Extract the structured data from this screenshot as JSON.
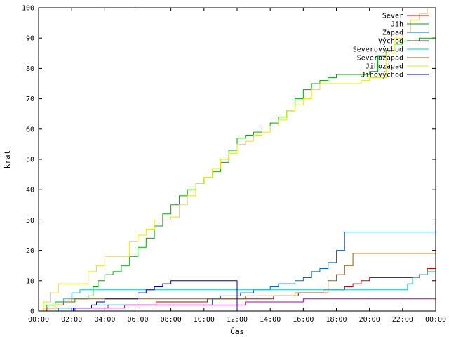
{
  "chart_data": {
    "type": "line",
    "title": "",
    "xlabel": "Čas",
    "ylabel": "krát",
    "xlim": [
      0,
      24
    ],
    "ylim": [
      0,
      100
    ],
    "x_ticks": [
      {
        "value": 0,
        "label": "00:00"
      },
      {
        "value": 2,
        "label": "02:00"
      },
      {
        "value": 4,
        "label": "04:00"
      },
      {
        "value": 6,
        "label": "06:00"
      },
      {
        "value": 8,
        "label": "08:00"
      },
      {
        "value": 10,
        "label": "10:00"
      },
      {
        "value": 12,
        "label": "12:00"
      },
      {
        "value": 14,
        "label": "14:00"
      },
      {
        "value": 16,
        "label": "16:00"
      },
      {
        "value": 18,
        "label": "18:00"
      },
      {
        "value": 20,
        "label": "20:00"
      },
      {
        "value": 22,
        "label": "22:00"
      },
      {
        "value": 24,
        "label": "00:00"
      }
    ],
    "y_ticks": [
      0,
      10,
      20,
      30,
      40,
      50,
      60,
      70,
      80,
      90,
      100
    ],
    "grid": false,
    "legend_position": "top-right",
    "series": [
      {
        "name": "Sever",
        "color": "#cc0000",
        "points": [
          [
            0,
            0
          ],
          [
            0.3,
            1
          ],
          [
            4,
            1
          ],
          [
            4.2,
            2
          ],
          [
            7,
            2
          ],
          [
            7.1,
            3
          ],
          [
            10,
            3
          ],
          [
            10.2,
            4
          ],
          [
            12,
            4
          ],
          [
            12.2,
            4
          ],
          [
            14,
            4
          ],
          [
            14.2,
            5
          ],
          [
            15.5,
            5
          ],
          [
            15.7,
            6
          ],
          [
            17,
            6
          ],
          [
            17.2,
            7
          ],
          [
            18,
            7
          ],
          [
            18.5,
            8
          ],
          [
            19,
            9
          ],
          [
            19.5,
            10
          ],
          [
            20,
            11
          ],
          [
            22.5,
            11
          ],
          [
            23,
            12
          ],
          [
            23.5,
            14
          ],
          [
            24,
            15
          ]
        ]
      },
      {
        "name": "Jih",
        "color": "#00aa00",
        "points": [
          [
            0,
            0
          ],
          [
            0.5,
            2
          ],
          [
            1,
            3
          ],
          [
            2,
            3
          ],
          [
            2.2,
            4
          ],
          [
            3,
            5
          ],
          [
            3.3,
            8
          ],
          [
            3.6,
            10
          ],
          [
            4,
            12
          ],
          [
            4.5,
            13
          ],
          [
            5,
            15
          ],
          [
            5.5,
            18
          ],
          [
            6,
            21
          ],
          [
            6.5,
            24
          ],
          [
            7,
            28
          ],
          [
            7.5,
            32
          ],
          [
            8,
            35
          ],
          [
            8.5,
            38
          ],
          [
            9,
            40
          ],
          [
            9.5,
            42
          ],
          [
            10,
            44
          ],
          [
            10.5,
            46
          ],
          [
            11,
            49
          ],
          [
            11.5,
            53
          ],
          [
            12,
            57
          ],
          [
            12.5,
            58
          ],
          [
            13,
            59
          ],
          [
            13.5,
            61
          ],
          [
            14,
            62
          ],
          [
            14.5,
            64
          ],
          [
            15,
            66
          ],
          [
            15.5,
            70
          ],
          [
            16,
            73
          ],
          [
            16.5,
            75
          ],
          [
            17,
            76
          ],
          [
            17.5,
            77
          ],
          [
            18,
            78
          ],
          [
            19,
            78
          ],
          [
            20,
            79
          ],
          [
            20.5,
            84
          ],
          [
            21,
            86
          ],
          [
            21.5,
            88
          ],
          [
            22,
            89
          ],
          [
            23,
            90
          ],
          [
            24,
            91
          ]
        ]
      },
      {
        "name": "Západ",
        "color": "#0066cc",
        "points": [
          [
            0,
            0
          ],
          [
            1,
            0
          ],
          [
            1.2,
            1
          ],
          [
            3,
            1
          ],
          [
            3.2,
            2
          ],
          [
            10,
            2
          ],
          [
            10.5,
            4
          ],
          [
            11,
            5
          ],
          [
            12,
            5
          ],
          [
            12.2,
            6
          ],
          [
            13,
            7
          ],
          [
            14,
            8
          ],
          [
            14.5,
            9
          ],
          [
            15,
            9
          ],
          [
            15.5,
            10
          ],
          [
            16,
            11
          ],
          [
            16.5,
            13
          ],
          [
            17,
            14
          ],
          [
            17.5,
            16
          ],
          [
            18,
            20
          ],
          [
            18.5,
            26
          ],
          [
            24,
            26
          ]
        ]
      },
      {
        "name": "Východ",
        "color": "#aa00aa",
        "points": [
          [
            0,
            0
          ],
          [
            2,
            0
          ],
          [
            2.2,
            1
          ],
          [
            5,
            1
          ],
          [
            5.2,
            2
          ],
          [
            9,
            2
          ],
          [
            9.2,
            2
          ],
          [
            12,
            2
          ],
          [
            12.5,
            3
          ],
          [
            14,
            3
          ],
          [
            14.5,
            3
          ],
          [
            16,
            4
          ],
          [
            24,
            4
          ],
          [
            24,
            5
          ]
        ]
      },
      {
        "name": "Severovýchod",
        "color": "#00cccc",
        "points": [
          [
            0,
            0
          ],
          [
            1,
            2
          ],
          [
            1.5,
            4
          ],
          [
            2,
            6
          ],
          [
            2.5,
            7
          ],
          [
            12,
            7
          ],
          [
            12.5,
            7
          ],
          [
            22,
            7
          ],
          [
            22.3,
            9
          ],
          [
            22.6,
            11
          ],
          [
            23,
            12
          ],
          [
            23.5,
            13
          ],
          [
            24,
            14
          ]
        ]
      },
      {
        "name": "Severozápad",
        "color": "#aa5500",
        "points": [
          [
            0,
            0
          ],
          [
            0.5,
            1
          ],
          [
            1,
            2
          ],
          [
            1.5,
            3
          ],
          [
            2,
            4
          ],
          [
            10,
            4
          ],
          [
            10.5,
            4
          ],
          [
            12.5,
            5
          ],
          [
            15,
            5
          ],
          [
            15.5,
            6
          ],
          [
            17,
            6
          ],
          [
            17.5,
            10
          ],
          [
            18,
            12
          ],
          [
            18.5,
            15
          ],
          [
            19,
            19
          ],
          [
            24,
            19
          ]
        ]
      },
      {
        "name": "Jihozápad",
        "color": "#e8e800",
        "points": [
          [
            0,
            0
          ],
          [
            0.3,
            3
          ],
          [
            0.7,
            6
          ],
          [
            1.2,
            9
          ],
          [
            2.5,
            9
          ],
          [
            3,
            13
          ],
          [
            3.5,
            15
          ],
          [
            4,
            18
          ],
          [
            5,
            18
          ],
          [
            5.5,
            23
          ],
          [
            6,
            25
          ],
          [
            6.5,
            27
          ],
          [
            7,
            30
          ],
          [
            7.5,
            30
          ],
          [
            8,
            31
          ],
          [
            8.5,
            35
          ],
          [
            9,
            38
          ],
          [
            9.5,
            42
          ],
          [
            10,
            44
          ],
          [
            10.5,
            47
          ],
          [
            11,
            50
          ],
          [
            11.5,
            52
          ],
          [
            12,
            55
          ],
          [
            12.5,
            56
          ],
          [
            13,
            58
          ],
          [
            13.5,
            59
          ],
          [
            14,
            61
          ],
          [
            14.5,
            63
          ],
          [
            15,
            66
          ],
          [
            15.5,
            68
          ],
          [
            16,
            70
          ],
          [
            16.5,
            73
          ],
          [
            17,
            75
          ],
          [
            18,
            75
          ],
          [
            19,
            75
          ],
          [
            19.5,
            76
          ],
          [
            20,
            77
          ],
          [
            21,
            85
          ],
          [
            21.5,
            90
          ],
          [
            22,
            92
          ],
          [
            22.5,
            96
          ],
          [
            23,
            98
          ],
          [
            23.5,
            100
          ]
        ]
      },
      {
        "name": "Jihovýchod",
        "color": "#0000aa",
        "points": [
          [
            0,
            0
          ],
          [
            2,
            0
          ],
          [
            2.1,
            1
          ],
          [
            3,
            1
          ],
          [
            3.2,
            2
          ],
          [
            3.5,
            3
          ],
          [
            4,
            4
          ],
          [
            5.5,
            4
          ],
          [
            6,
            6
          ],
          [
            6.5,
            7
          ],
          [
            7,
            8
          ],
          [
            7.5,
            9
          ],
          [
            8,
            10
          ],
          [
            11.9,
            10
          ],
          [
            12,
            0
          ],
          [
            24,
            0
          ]
        ]
      }
    ]
  }
}
